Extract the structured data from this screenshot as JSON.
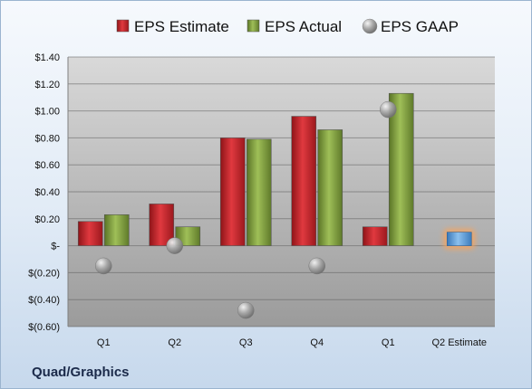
{
  "company": "Quad/Graphics",
  "chart_data": {
    "type": "bar",
    "categories": [
      "Q1",
      "Q2",
      "Q3",
      "Q4",
      "Q1",
      "Q2 Estimate"
    ],
    "series": [
      {
        "name": "EPS Estimate",
        "color": "#c0272d",
        "values": [
          0.18,
          0.31,
          0.8,
          0.96,
          0.14,
          null
        ]
      },
      {
        "name": "EPS Actual",
        "color": "#7c9a3b",
        "values": [
          0.23,
          0.14,
          0.79,
          0.86,
          1.13,
          null
        ]
      },
      {
        "name": "EPS GAAP",
        "color": "#9a9a9a",
        "values": [
          -0.15,
          0.0,
          -0.48,
          -0.15,
          1.01,
          null
        ]
      }
    ],
    "projection": {
      "category": "Q2 Estimate",
      "value": 0.1,
      "color": "#5b9bd5",
      "glow": "#f4a460"
    },
    "ylim": [
      -0.6,
      1.4
    ],
    "yticks": [
      -0.6,
      -0.4,
      -0.2,
      0,
      0.2,
      0.4,
      0.6,
      0.8,
      1.0,
      1.2,
      1.4
    ],
    "ytick_labels": [
      "$(0.60)",
      "$(0.40)",
      "$(0.20)",
      "$-",
      "$0.20",
      "$0.40",
      "$0.60",
      "$0.80",
      "$1.00",
      "$1.20",
      "$1.40"
    ],
    "legend_position": "top",
    "grid": true
  }
}
